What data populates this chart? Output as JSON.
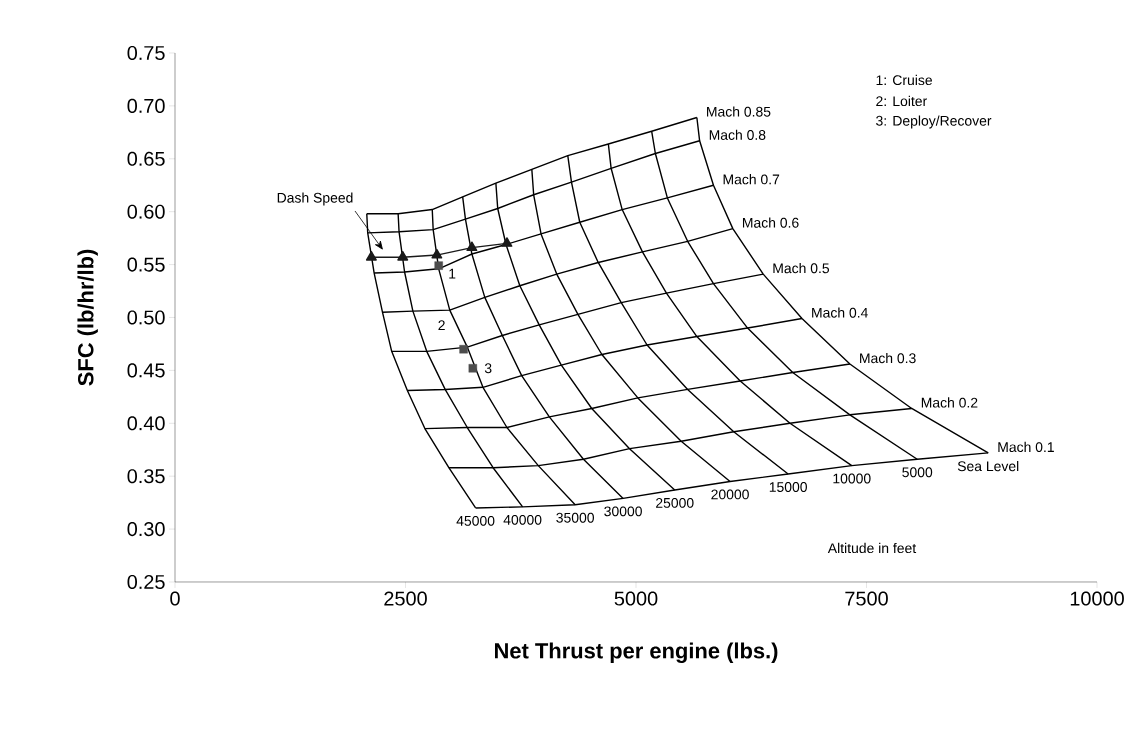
{
  "chart_data": {
    "type": "line",
    "xlabel": "Net Thrust per engine (lbs.)",
    "ylabel": "SFC (lb/hr/lb)",
    "xlim": [
      0,
      10000
    ],
    "ylim": [
      0.25,
      0.75
    ],
    "xticks": [
      0,
      2500,
      5000,
      7500,
      10000
    ],
    "yticks": [
      0.25,
      {
        "value": 0.3,
        "label": "0.30"
      },
      0.35,
      {
        "value": 0.4,
        "label": "0.40"
      },
      0.45,
      {
        "value": 0.5,
        "label": "0.50"
      },
      0.55,
      {
        "value": 0.6,
        "label": "0.60"
      },
      0.65,
      {
        "value": 0.7,
        "label": "0.70"
      },
      0.75
    ],
    "series": [
      {
        "name": "Mach 0.85",
        "color": "#000000",
        "x": [
          2080,
          2420,
          2790,
          3120,
          3480,
          3870,
          4260,
          4700,
          5170,
          5660
        ],
        "values": [
          0.598,
          0.598,
          0.602,
          0.614,
          0.627,
          0.64,
          0.653,
          0.664,
          0.676,
          0.689
        ]
      },
      {
        "name": "Mach 0.8",
        "color": "#000000",
        "x": [
          2090,
          2430,
          2800,
          3150,
          3500,
          3890,
          4300,
          4730,
          5210,
          5690
        ],
        "values": [
          0.58,
          0.581,
          0.583,
          0.593,
          0.603,
          0.616,
          0.628,
          0.641,
          0.655,
          0.667
        ]
      },
      {
        "name": "Mach 0.7",
        "color": "#000000",
        "x": [
          2160,
          2490,
          2860,
          3220,
          3590,
          3970,
          4390,
          4850,
          5340,
          5840
        ],
        "values": [
          0.542,
          0.543,
          0.546,
          0.56,
          0.569,
          0.579,
          0.59,
          0.602,
          0.613,
          0.625
        ]
      },
      {
        "name": "Mach 0.6",
        "color": "#000000",
        "x": [
          2250,
          2580,
          2980,
          3360,
          3740,
          4140,
          4590,
          5070,
          5560,
          6050
        ],
        "values": [
          0.505,
          0.506,
          0.507,
          0.519,
          0.53,
          0.541,
          0.552,
          0.562,
          0.572,
          0.584
        ]
      },
      {
        "name": "Mach 0.5",
        "color": "#000000",
        "x": [
          2350,
          2730,
          3170,
          3550,
          3950,
          4370,
          4840,
          5330,
          5840,
          6380
        ],
        "values": [
          0.468,
          0.468,
          0.472,
          0.483,
          0.493,
          0.503,
          0.514,
          0.523,
          0.532,
          0.541
        ]
      },
      {
        "name": "Mach 0.4",
        "color": "#000000",
        "x": [
          2520,
          2930,
          3340,
          3760,
          4190,
          4630,
          5120,
          5660,
          6210,
          6800
        ],
        "values": [
          0.431,
          0.432,
          0.434,
          0.445,
          0.455,
          0.465,
          0.474,
          0.482,
          0.49,
          0.499
        ]
      },
      {
        "name": "Mach 0.3",
        "color": "#000000",
        "x": [
          2710,
          3170,
          3600,
          4060,
          4520,
          5020,
          5560,
          6130,
          6700,
          7320
        ],
        "values": [
          0.395,
          0.396,
          0.396,
          0.406,
          0.414,
          0.424,
          0.432,
          0.44,
          0.448,
          0.456
        ]
      },
      {
        "name": "Mach 0.2",
        "color": "#000000",
        "x": [
          2970,
          3450,
          3940,
          4430,
          4930,
          5490,
          6060,
          6670,
          7320,
          7990
        ],
        "values": [
          0.358,
          0.358,
          0.36,
          0.366,
          0.376,
          0.383,
          0.392,
          0.4,
          0.408,
          0.414
        ]
      },
      {
        "name": "Mach 0.1",
        "color": "#000000",
        "x": [
          3260,
          3770,
          4340,
          4860,
          5420,
          6020,
          6650,
          7340,
          8050,
          8820
        ],
        "values": [
          0.32,
          0.321,
          0.323,
          0.329,
          0.337,
          0.345,
          0.352,
          0.36,
          0.366,
          0.372
        ]
      },
      {
        "name": "45000",
        "color": "#000000",
        "x": [
          2080,
          2090,
          2160,
          2250,
          2350,
          2520,
          2710,
          2970,
          3260
        ],
        "values": [
          0.598,
          0.58,
          0.542,
          0.505,
          0.468,
          0.431,
          0.395,
          0.358,
          0.32
        ]
      },
      {
        "name": "40000",
        "color": "#000000",
        "x": [
          2420,
          2430,
          2490,
          2580,
          2730,
          2930,
          3170,
          3450,
          3770
        ],
        "values": [
          0.598,
          0.581,
          0.543,
          0.506,
          0.468,
          0.432,
          0.396,
          0.358,
          0.321
        ]
      },
      {
        "name": "35000",
        "color": "#000000",
        "x": [
          2790,
          2800,
          2860,
          2980,
          3170,
          3340,
          3600,
          3940,
          4340
        ],
        "values": [
          0.602,
          0.583,
          0.546,
          0.507,
          0.472,
          0.434,
          0.396,
          0.36,
          0.323
        ]
      },
      {
        "name": "30000",
        "color": "#000000",
        "x": [
          3120,
          3150,
          3220,
          3360,
          3550,
          3760,
          4060,
          4430,
          4860
        ],
        "values": [
          0.614,
          0.593,
          0.56,
          0.519,
          0.483,
          0.445,
          0.406,
          0.366,
          0.329
        ]
      },
      {
        "name": "25000",
        "color": "#000000",
        "x": [
          3480,
          3500,
          3590,
          3740,
          3950,
          4190,
          4520,
          4930,
          5420
        ],
        "values": [
          0.627,
          0.603,
          0.569,
          0.53,
          0.493,
          0.455,
          0.414,
          0.376,
          0.337
        ]
      },
      {
        "name": "20000",
        "color": "#000000",
        "x": [
          3870,
          3890,
          3970,
          4140,
          4370,
          4630,
          5020,
          5490,
          6020
        ],
        "values": [
          0.64,
          0.616,
          0.579,
          0.541,
          0.503,
          0.465,
          0.424,
          0.383,
          0.345
        ]
      },
      {
        "name": "15000",
        "color": "#000000",
        "x": [
          4260,
          4300,
          4390,
          4590,
          4840,
          5120,
          5560,
          6060,
          6650
        ],
        "values": [
          0.653,
          0.628,
          0.59,
          0.552,
          0.514,
          0.474,
          0.432,
          0.392,
          0.352
        ]
      },
      {
        "name": "10000",
        "color": "#000000",
        "x": [
          4700,
          4730,
          4850,
          5070,
          5330,
          5660,
          6130,
          6670,
          7340
        ],
        "values": [
          0.664,
          0.641,
          0.602,
          0.562,
          0.523,
          0.482,
          0.44,
          0.4,
          0.36
        ]
      },
      {
        "name": "5000",
        "color": "#000000",
        "x": [
          5170,
          5210,
          5340,
          5560,
          5840,
          6210,
          6700,
          7320,
          8050
        ],
        "values": [
          0.676,
          0.655,
          0.613,
          0.572,
          0.532,
          0.49,
          0.448,
          0.408,
          0.366
        ]
      },
      {
        "name": "Sea Level",
        "color": "#000000",
        "x": [
          5660,
          5690,
          5840,
          6050,
          6380,
          6800,
          7320,
          7990,
          8820
        ],
        "values": [
          0.689,
          0.667,
          0.625,
          0.584,
          0.541,
          0.499,
          0.456,
          0.414,
          0.372
        ]
      },
      {
        "type": "line",
        "marker": "triangle",
        "color": "#1a1a1a",
        "x": [
          2130,
          2470,
          2840,
          3220,
          3600
        ],
        "values": [
          0.557,
          0.557,
          0.559,
          0.566,
          0.57
        ]
      },
      {
        "type": "scatter",
        "marker": "square",
        "color": "#4d4d4d",
        "x": [
          2860,
          3130,
          3230
        ],
        "values": [
          0.549,
          0.47,
          0.452
        ]
      }
    ],
    "annotations": [
      "Dash Speed",
      {
        "text": "1",
        "x": 2860,
        "y": 0.549
      },
      {
        "text": "2",
        "x": 3130,
        "y": 0.47
      },
      {
        "text": "3",
        "x": 3230,
        "y": 0.452
      },
      "1:  Cruise",
      "2:  Loiter",
      "3:  Deploy/Recover",
      "Altitude in feet"
    ]
  }
}
